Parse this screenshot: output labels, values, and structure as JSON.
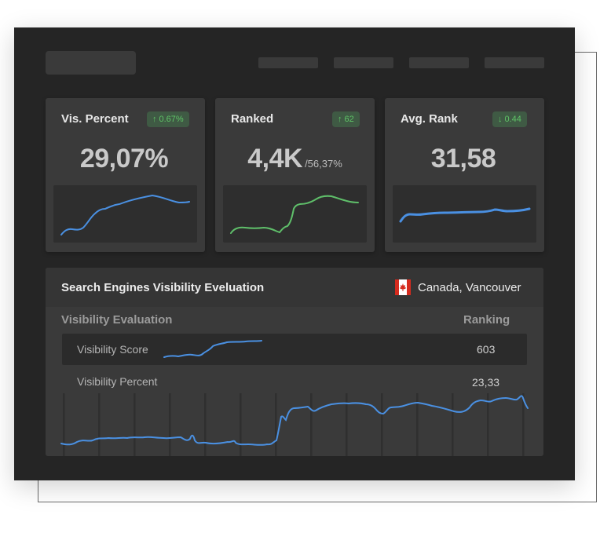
{
  "cards": [
    {
      "title": "Vis. Percent",
      "badge": {
        "direction": "up",
        "arrow": "↑",
        "text": "0.67%"
      },
      "value": "29,07%",
      "sub": "",
      "color": "#4a90e2"
    },
    {
      "title": "Ranked",
      "badge": {
        "direction": "up",
        "arrow": "↑",
        "text": "62"
      },
      "value": "4,4K",
      "sub": "/56,37%",
      "color": "#5fbf6a"
    },
    {
      "title": "Avg. Rank",
      "badge": {
        "direction": "down",
        "arrow": "↓",
        "text": "0.44"
      },
      "value": "31,58",
      "sub": "",
      "color": "#4a90e2"
    }
  ],
  "visibility": {
    "title": "Search Engines Visibility Eveluation",
    "location": "Canada, Vancouver",
    "flag_icon": "canada-flag-icon",
    "columns": {
      "evaluation": "Visibility Evaluation",
      "ranking": "Ranking"
    },
    "rows": [
      {
        "label": "Visibility Score",
        "value": "603"
      },
      {
        "label": "Visibility Percent",
        "value": "23,33"
      }
    ]
  },
  "colors": {
    "panel_bg": "#252525",
    "card_bg": "#3a3a3a",
    "badge_bg": "#3f5a44",
    "badge_text": "#5fc467",
    "line_blue": "#4a90e2",
    "line_green": "#5fbf6a"
  }
}
